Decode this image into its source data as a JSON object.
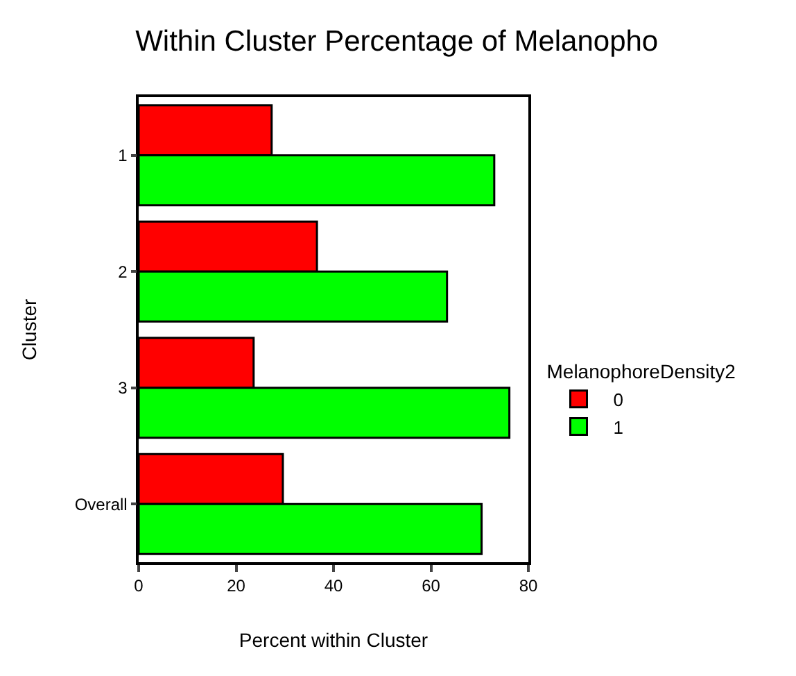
{
  "chart_data": {
    "type": "bar",
    "orientation": "horizontal",
    "title": "Within Cluster Percentage of Melanopho",
    "xlabel": "Percent within Cluster",
    "ylabel": "Cluster",
    "legend_title": "MelanophoreDensity2",
    "categories": [
      "1",
      "2",
      "3",
      "Overall"
    ],
    "series": [
      {
        "name": "0",
        "color": "#ff0000",
        "values": [
          27.3,
          36.6,
          23.6,
          29.6
        ]
      },
      {
        "name": "1",
        "color": "#00ff00",
        "values": [
          73.0,
          63.3,
          76.1,
          70.4
        ]
      }
    ],
    "xlim": [
      0,
      80
    ],
    "xticks": [
      0,
      20,
      40,
      60,
      80
    ],
    "grid": false,
    "legend": "right"
  }
}
